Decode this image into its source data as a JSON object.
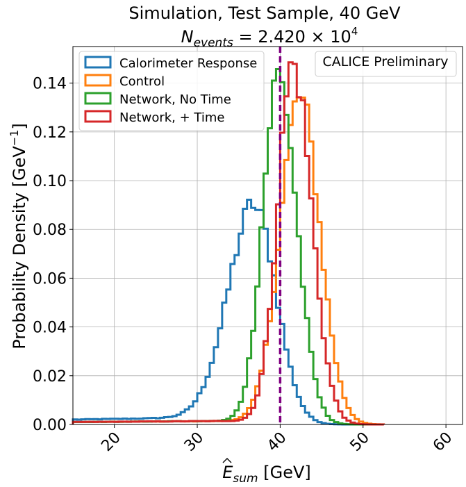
{
  "chart_data": {
    "type": "histogram-step",
    "title_line1": "Simulation, Test Sample, 40 GeV",
    "title_line2_prefix": "N",
    "title_line2_sub": "events",
    "title_line2_value": " = 2.420 × 10",
    "title_line2_exp": "4",
    "xlabel_main": "E",
    "xlabel_sub": "sum",
    "xlabel_unit": " [GeV]",
    "ylabel": "Probability Density [GeV",
    "ylabel_exp": "−1",
    "ylabel_end": "]",
    "annotation": "CALICE Preliminary",
    "xlim": [
      15,
      62
    ],
    "ylim": [
      0,
      0.155
    ],
    "xticks": [
      20,
      30,
      40,
      50,
      60
    ],
    "xtick_labels": [
      "20",
      "30",
      "40",
      "50",
      "60"
    ],
    "yticks": [
      0,
      0.02,
      0.04,
      0.06,
      0.08,
      0.1,
      0.12,
      0.14
    ],
    "ytick_labels": [
      "0.00",
      "0.02",
      "0.04",
      "0.06",
      "0.08",
      "0.10",
      "0.12",
      "0.14"
    ],
    "grid": true,
    "legend_position": "top-left",
    "reference_line": {
      "x": 40,
      "color": "#800080",
      "style": "dashed"
    },
    "bin_width": 0.5,
    "series": [
      {
        "name": "Calorimeter Response",
        "color": "#1f77b4",
        "mu": 37.0,
        "sigma_left": 3.2,
        "sigma_right": 2.6,
        "peak": 0.088,
        "tail_level": 0.002,
        "x_min": 15,
        "x_max": 52.5
      },
      {
        "name": "Control",
        "color": "#ff7f0e",
        "mu": 42.4,
        "sigma_left": 2.4,
        "sigma_right": 2.4,
        "peak": 0.133,
        "tail_level": 0.001,
        "x_min": 15,
        "x_max": 52.5
      },
      {
        "name": "Network, No Time",
        "color": "#2ca02c",
        "mu": 39.8,
        "sigma_left": 1.9,
        "sigma_right": 2.2,
        "peak": 0.142,
        "tail_level": 0.001,
        "x_min": 15,
        "x_max": 52.5
      },
      {
        "name": "Network, + Time",
        "color": "#d62728",
        "mu": 41.6,
        "sigma_left": 1.9,
        "sigma_right": 2.2,
        "peak": 0.147,
        "tail_level": 0.001,
        "x_min": 15,
        "x_max": 52.5
      }
    ]
  }
}
